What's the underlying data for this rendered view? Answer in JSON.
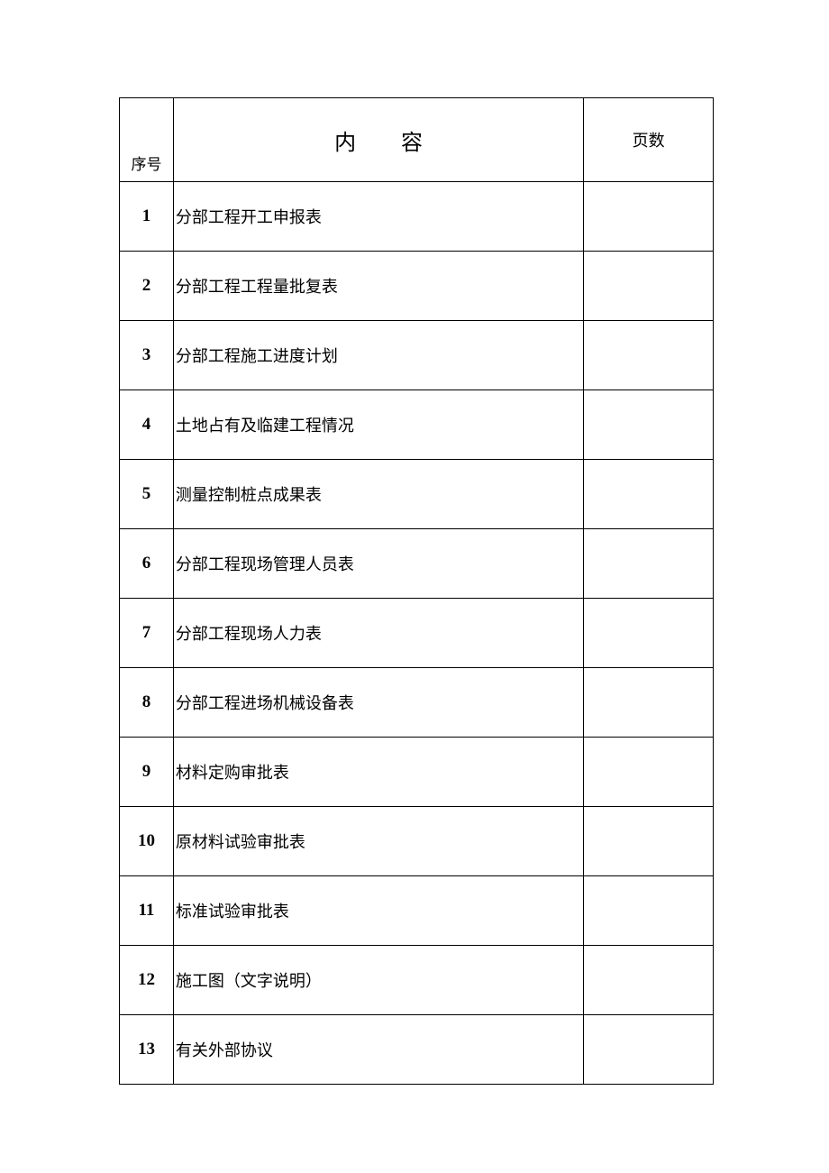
{
  "table": {
    "headers": {
      "seq": "序号",
      "content": "内容",
      "pages": "页数"
    },
    "columns": {
      "seq_width": 60,
      "content_width": 456,
      "pages_width": 144
    },
    "header_row_height": 93,
    "data_row_height": 77,
    "border_color": "#000000",
    "background_color": "#ffffff",
    "header_content_fontsize": 24,
    "header_seq_fontsize": 17,
    "header_pages_fontsize": 18,
    "data_seq_fontsize": 19,
    "data_content_fontsize": 18,
    "rows": [
      {
        "seq": "1",
        "content": "分部工程开工申报表",
        "pages": ""
      },
      {
        "seq": "2",
        "content": "分部工程工程量批复表",
        "pages": ""
      },
      {
        "seq": "3",
        "content": "分部工程施工进度计划",
        "pages": ""
      },
      {
        "seq": "4",
        "content": "土地占有及临建工程情况",
        "pages": ""
      },
      {
        "seq": "5",
        "content": "测量控制桩点成果表",
        "pages": ""
      },
      {
        "seq": "6",
        "content": "分部工程现场管理人员表",
        "pages": ""
      },
      {
        "seq": "7",
        "content": "分部工程现场人力表",
        "pages": ""
      },
      {
        "seq": "8",
        "content": "分部工程进场机械设备表",
        "pages": ""
      },
      {
        "seq": "9",
        "content": "材料定购审批表",
        "pages": ""
      },
      {
        "seq": "10",
        "content": "原材料试验审批表",
        "pages": ""
      },
      {
        "seq": "11",
        "content": "标准试验审批表",
        "pages": ""
      },
      {
        "seq": "12",
        "content": "施工图（文字说明）",
        "pages": ""
      },
      {
        "seq": "13",
        "content": "有关外部协议",
        "pages": ""
      }
    ]
  }
}
